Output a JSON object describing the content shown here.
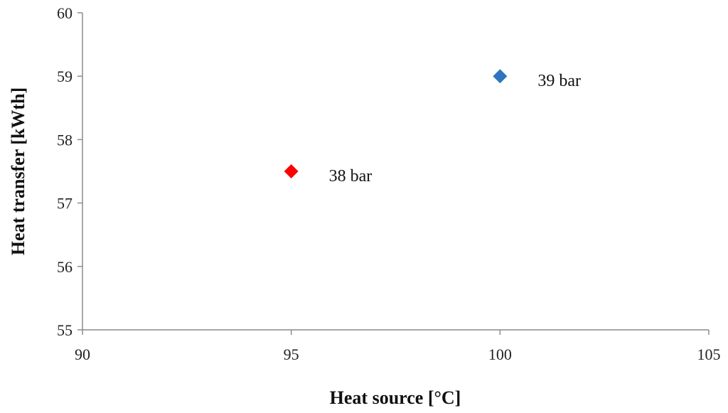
{
  "chart_data": {
    "type": "scatter",
    "xlabel": "Heat source [°C]",
    "ylabel": "Heat transfer [kWth]",
    "xlim": [
      90,
      105
    ],
    "ylim": [
      55,
      60
    ],
    "xticks": [
      "90",
      "95",
      "100",
      "105"
    ],
    "yticks": [
      "55",
      "56",
      "57",
      "58",
      "59",
      "60"
    ],
    "grid": false,
    "points": [
      {
        "x": 95,
        "y": 57.5,
        "label": "38 bar",
        "color": "#ff0000"
      },
      {
        "x": 100,
        "y": 59,
        "label": "39 bar",
        "color": "#2e75c0"
      }
    ]
  }
}
